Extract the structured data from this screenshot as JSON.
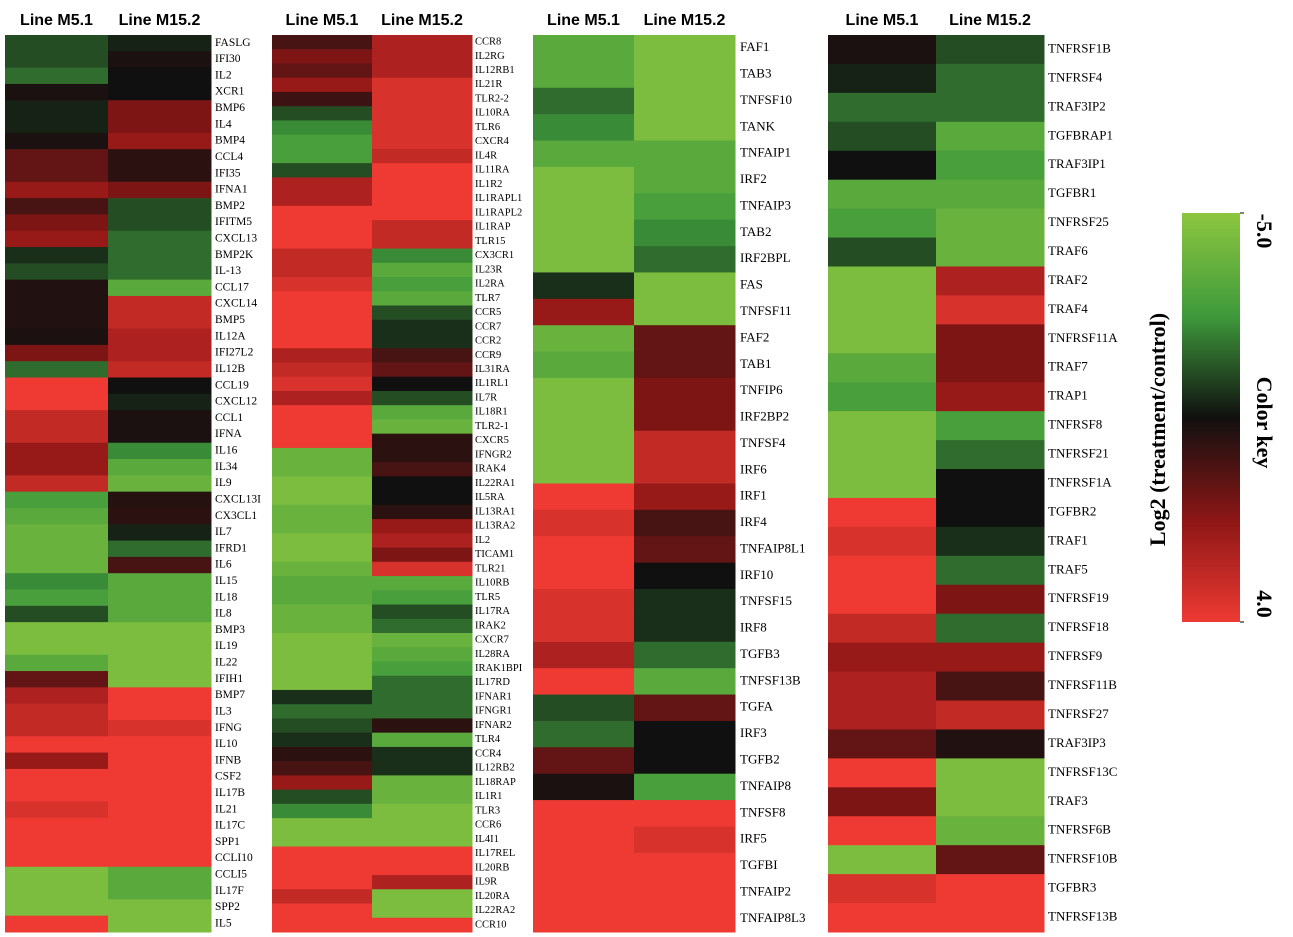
{
  "chart_data": [
    {
      "type": "heatmap",
      "columns": [
        "Line M5.1",
        "Line M15.2"
      ],
      "rows": [
        "FASLG",
        "IFI30",
        "IL2",
        "XCR1",
        "BMP6",
        "IL4",
        "BMP4",
        "CCL4",
        "IFI35",
        "IFNA1",
        "BMP2",
        "IFITM5",
        "CXCL13",
        "BMP2K",
        "IL-13",
        "CCL17",
        "CXCL14",
        "BMP5",
        "IL12A",
        "IFI27L2",
        "IL12B",
        "CCL19",
        "CXCL12",
        "CCL1",
        "IFNA",
        "IL16",
        "IL34",
        "IL9",
        "CXCL13I",
        "CX3CL1",
        "IL7",
        "IFRD1",
        "IL6",
        "IL15",
        "IL18",
        "IL8",
        "BMP3",
        "IL19",
        "IL22",
        "IFIH1",
        "BMP7",
        "IL3",
        "IFNG",
        "IL10",
        "IFNB",
        "CSF2",
        "IL17B",
        "IL21",
        "IL17C",
        "SPP1",
        "CCLI10",
        "CCLI5",
        "IL17F",
        "SPP2",
        "IL5"
      ],
      "values": [
        [
          -1.5,
          -0.8
        ],
        [
          -1.5,
          -0.3
        ],
        [
          -2,
          -0.5
        ],
        [
          -0.3,
          -0.5
        ],
        [
          -0.8,
          1.5
        ],
        [
          -0.8,
          1.5
        ],
        [
          -0.3,
          2
        ],
        [
          1,
          0
        ],
        [
          1,
          0
        ],
        [
          2,
          1.5
        ],
        [
          0.5,
          -1.5
        ],
        [
          1.5,
          -1.5
        ],
        [
          2,
          -2
        ],
        [
          -1,
          -2
        ],
        [
          -1.5,
          -2
        ],
        [
          -0.2,
          -3.5
        ],
        [
          -0.2,
          3
        ],
        [
          -0.2,
          3
        ],
        [
          -0.3,
          2.5
        ],
        [
          1.5,
          2.5
        ],
        [
          -2,
          3
        ],
        [
          4,
          -0.5
        ],
        [
          4,
          -0.8
        ],
        [
          3,
          -0.3
        ],
        [
          3,
          -0.3
        ],
        [
          2,
          -2.5
        ],
        [
          2,
          -3.5
        ],
        [
          3,
          -4
        ],
        [
          -3,
          -0.1
        ],
        [
          -3.5,
          0
        ],
        [
          -4,
          -0.8
        ],
        [
          -4,
          -2
        ],
        [
          -4,
          0.5
        ],
        [
          -2.5,
          -3.5
        ],
        [
          -3,
          -3.5
        ],
        [
          -1.5,
          -3.5
        ],
        [
          -4.5,
          -4.5
        ],
        [
          -4.5,
          -4.5
        ],
        [
          -3.5,
          -4.5
        ],
        [
          1,
          -4.5
        ],
        [
          2.5,
          4
        ],
        [
          3,
          4
        ],
        [
          3,
          3.5
        ],
        [
          4,
          4
        ],
        [
          2,
          4
        ],
        [
          4,
          4
        ],
        [
          4,
          4
        ],
        [
          3.5,
          4
        ],
        [
          4,
          4
        ],
        [
          4,
          4
        ],
        [
          4,
          4
        ],
        [
          -4.5,
          -3.5
        ],
        [
          -4.5,
          -3.5
        ],
        [
          -4.5,
          -4.5
        ],
        [
          4,
          -4.5
        ]
      ]
    },
    {
      "type": "heatmap",
      "columns": [
        "Line M5.1",
        "Line M15.2"
      ],
      "rows": [
        "CCR8",
        "IL2RG",
        "IL12RB1",
        "IL21R",
        "TLR2-2",
        "IL10RA",
        "TLR6",
        "CXCR4",
        "IL4R",
        "IL11RA",
        "IL1R2",
        "IL1RAPL1",
        "IL1RAPL2",
        "IL1RAP",
        "TLR15",
        "CX3CR1",
        "IL23R",
        "IL2RA",
        "TLR7",
        "CCR5",
        "CCR7",
        "CCR2",
        "CCR9",
        "IL31RA",
        "IL1RL1",
        "IL7R",
        "IL18R1",
        "TLR2-1",
        "CXCR5",
        "IFNGR2",
        "IRAK4",
        "IL22RA1",
        "IL5RA",
        "IL13RA1",
        "IL13RA2",
        "IL2",
        "TICAM1",
        "TLR21",
        "IL10RB",
        "TLR5",
        "IL17RA",
        "IRAK2",
        "CXCR7",
        "IL28RA",
        "IRAK1BPI",
        "IL17RD",
        "IFNAR1",
        "IFNGR1",
        "IFNAR2",
        "TLR4",
        "CCR4",
        "IL12RB2",
        "IL18RAP",
        "IL1R1",
        "TLR3",
        "CCR6",
        "IL4I1",
        "IL17REL",
        "IL20RB",
        "IL9R",
        "IL20RA",
        "IL22RA2",
        "CCR10"
      ],
      "values": [
        [
          0.5,
          2.5
        ],
        [
          1.5,
          2.5
        ],
        [
          1,
          2.5
        ],
        [
          2,
          3.5
        ],
        [
          0.3,
          3.5
        ],
        [
          -1.5,
          3.5
        ],
        [
          -2.5,
          3.5
        ],
        [
          -3,
          3.5
        ],
        [
          -3,
          3
        ],
        [
          -1.5,
          4
        ],
        [
          2.5,
          4
        ],
        [
          2.5,
          4
        ],
        [
          4,
          4
        ],
        [
          4,
          3
        ],
        [
          4,
          3
        ],
        [
          3,
          -2.5
        ],
        [
          3,
          -3.5
        ],
        [
          3.5,
          -3
        ],
        [
          4,
          -3.5
        ],
        [
          4,
          -1.5
        ],
        [
          4,
          -1
        ],
        [
          4,
          -1
        ],
        [
          2.5,
          0.5
        ],
        [
          3,
          1
        ],
        [
          3.5,
          -0.5
        ],
        [
          2.5,
          -1.5
        ],
        [
          4,
          -3.5
        ],
        [
          4,
          -4
        ],
        [
          4,
          0
        ],
        [
          -4,
          0
        ],
        [
          -4,
          0.5
        ],
        [
          -4.5,
          -0.5
        ],
        [
          -4.5,
          -0.5
        ],
        [
          -4,
          0
        ],
        [
          -4,
          2
        ],
        [
          -4.5,
          2.5
        ],
        [
          -4.5,
          1.5
        ],
        [
          -4,
          3.5
        ],
        [
          -3.5,
          -3.5
        ],
        [
          -3.5,
          -3
        ],
        [
          -4,
          -1.5
        ],
        [
          -4,
          -2
        ],
        [
          -4.5,
          -4
        ],
        [
          -4.5,
          -3.5
        ],
        [
          -4.5,
          -3
        ],
        [
          -4.5,
          -2
        ],
        [
          -1,
          -2
        ],
        [
          -2,
          -2
        ],
        [
          -1.5,
          0
        ],
        [
          -1,
          -3.5
        ],
        [
          0,
          -1
        ],
        [
          0.5,
          -1
        ],
        [
          2,
          -4
        ],
        [
          -1.5,
          -4
        ],
        [
          -2.5,
          -4.5
        ],
        [
          -4.5,
          -4.5
        ],
        [
          -4.5,
          -4.5
        ],
        [
          4,
          4
        ],
        [
          4,
          4
        ],
        [
          4,
          2.5
        ],
        [
          3,
          -4.5
        ],
        [
          4,
          -4.5
        ],
        [
          4,
          4
        ]
      ]
    },
    {
      "type": "heatmap",
      "columns": [
        "Line M5.1",
        "Line M15.2"
      ],
      "rows": [
        "FAF1",
        "TAB3",
        "TNFSF10",
        "TANK",
        "TNFAIP1",
        "IRF2",
        "TNFAIP3",
        "TAB2",
        "IRF2BPL",
        "FAS",
        "TNFSF11",
        "FAF2",
        "TAB1",
        "TNFIP6",
        "IRF2BP2",
        "TNFSF4",
        "IRF6",
        "IRF1",
        "IRF4",
        "TNFAIP8L1",
        "IRF10",
        "TNFSF15",
        "IRF8",
        "TGFB3",
        "TNFSF13B",
        "TGFA",
        "IRF3",
        "TGFB2",
        "TNFAIP8",
        "TNFSF8",
        "IRF5",
        "TGFBI",
        "TNFAIP2",
        "TNFAIP8L3"
      ],
      "values": [
        [
          -3.5,
          -4.5
        ],
        [
          -3.5,
          -4.5
        ],
        [
          -2,
          -4.5
        ],
        [
          -2.5,
          -4.5
        ],
        [
          -3.5,
          -3.5
        ],
        [
          -4.5,
          -3.5
        ],
        [
          -4.5,
          -3
        ],
        [
          -4.5,
          -2.5
        ],
        [
          -4.5,
          -2
        ],
        [
          -1,
          -4.5
        ],
        [
          2,
          -4.5
        ],
        [
          -4,
          1
        ],
        [
          -3.5,
          1
        ],
        [
          -4.5,
          1.5
        ],
        [
          -4.5,
          1.5
        ],
        [
          -4.5,
          3
        ],
        [
          -4.5,
          3
        ],
        [
          4,
          2
        ],
        [
          3.5,
          0.5
        ],
        [
          4,
          1
        ],
        [
          4,
          -0.5
        ],
        [
          3.5,
          -1
        ],
        [
          3.5,
          -1
        ],
        [
          2.5,
          -2
        ],
        [
          4,
          -3.5
        ],
        [
          -1.5,
          1
        ],
        [
          -2,
          -0.5
        ],
        [
          1,
          -0.5
        ],
        [
          -0.3,
          -3
        ],
        [
          4,
          4
        ],
        [
          4,
          3.5
        ],
        [
          4,
          4
        ],
        [
          4,
          4
        ],
        [
          4,
          4
        ]
      ]
    },
    {
      "type": "heatmap",
      "columns": [
        "Line M5.1",
        "Line M15.2"
      ],
      "rows": [
        "TNFRSF1B",
        "TNFRSF4",
        "TRAF3IP2",
        "TGFBRAP1",
        "TRAF3IP1",
        "TGFBR1",
        "TNFRSF25",
        "TRAF6",
        "TRAF2",
        "TRAF4",
        "TNFRSF11A",
        "TRAF7",
        "TRAP1",
        "TNFRSF8",
        "TNFRSF21",
        "TNFRSF1A",
        "TGFBR2",
        "TRAF1",
        "TRAF5",
        "TNFRSF19",
        "TNFRSF18",
        "TNFRSF9",
        "TNFRSF11B",
        "TNFRSF27",
        "TRAF3IP3",
        "TNFRSF13C",
        "TRAF3",
        "TNFRSF6B",
        "TNFRSF10B",
        "TGFBR3",
        "TNFRSF13B"
      ],
      "values": [
        [
          -0.3,
          -1.5
        ],
        [
          -0.8,
          -2
        ],
        [
          -2,
          -2
        ],
        [
          -1.5,
          -3.5
        ],
        [
          -0.5,
          -3
        ],
        [
          -3.5,
          -3.5
        ],
        [
          -3,
          -4
        ],
        [
          -1.5,
          -4
        ],
        [
          -4.5,
          2.5
        ],
        [
          -4.5,
          3.5
        ],
        [
          -4.5,
          1.5
        ],
        [
          -3.5,
          1.5
        ],
        [
          -3,
          2
        ],
        [
          -4.5,
          -3
        ],
        [
          -4.5,
          -2
        ],
        [
          -4.5,
          -0.5
        ],
        [
          4,
          -0.5
        ],
        [
          3.5,
          -1
        ],
        [
          4,
          -2
        ],
        [
          4,
          1.5
        ],
        [
          3,
          -2
        ],
        [
          2,
          2
        ],
        [
          2.5,
          0.5
        ],
        [
          2.5,
          3
        ],
        [
          1,
          -0.2
        ],
        [
          4,
          -4.5
        ],
        [
          1.5,
          -4.5
        ],
        [
          4,
          -4
        ],
        [
          -4.5,
          1
        ],
        [
          3.5,
          4
        ],
        [
          4,
          4
        ]
      ]
    }
  ],
  "color_key": {
    "title": "Color key",
    "label": "Log2 (treatment/control)",
    "zlim": [
      -5,
      4
    ],
    "ticks": [
      {
        "value": -5,
        "label": "-5.0"
      },
      {
        "value": 4,
        "label": "4.0"
      }
    ],
    "colors": [
      "#8dc63f",
      "#3f9a3c",
      "#101010",
      "#8c1616",
      "#ee3a33"
    ]
  }
}
